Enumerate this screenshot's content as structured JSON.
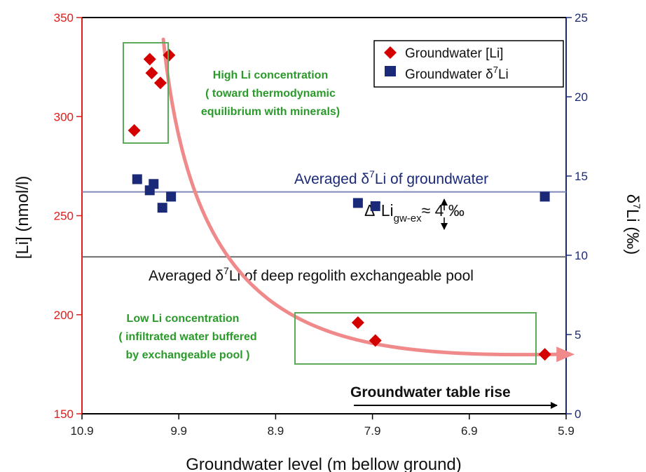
{
  "chart_data": {
    "type": "scatter",
    "xlabel": "Groundwater level (m bellow ground)",
    "ylabel_left": "[Li] (nmol/l)",
    "ylabel_right": "δ7Li (‰)",
    "x_reversed": true,
    "xlim": [
      10.9,
      5.9
    ],
    "ylim_left": [
      150,
      350
    ],
    "ylim_right": [
      0,
      25
    ],
    "x_ticks": [
      "10.9",
      "9.9",
      "8.9",
      "7.9",
      "6.9",
      "5.9"
    ],
    "y_left_ticks": [
      "150",
      "200",
      "250",
      "300",
      "350"
    ],
    "y_right_ticks": [
      "0",
      "5",
      "10",
      "15",
      "20",
      "25"
    ],
    "series": [
      {
        "name": "Groundwater [Li]",
        "axis": "left",
        "marker": "diamond",
        "color": "#d40000",
        "points": [
          {
            "x": 10.36,
            "y": 293
          },
          {
            "x": 10.2,
            "y": 329
          },
          {
            "x": 10.18,
            "y": 322
          },
          {
            "x": 10.09,
            "y": 317
          },
          {
            "x": 10.0,
            "y": 331
          },
          {
            "x": 8.05,
            "y": 196
          },
          {
            "x": 7.87,
            "y": 187
          },
          {
            "x": 6.12,
            "y": 180
          }
        ]
      },
      {
        "name": "Groundwater δ7Li",
        "axis": "right",
        "marker": "square",
        "color": "#1b2a78",
        "points": [
          {
            "x": 10.33,
            "y": 14.8
          },
          {
            "x": 10.2,
            "y": 14.1
          },
          {
            "x": 10.16,
            "y": 14.5
          },
          {
            "x": 10.07,
            "y": 13.0
          },
          {
            "x": 9.98,
            "y": 13.7
          },
          {
            "x": 8.05,
            "y": 13.3
          },
          {
            "x": 7.87,
            "y": 13.1
          },
          {
            "x": 6.12,
            "y": 13.7
          }
        ]
      }
    ],
    "reference_lines": [
      {
        "axis": "right",
        "y": 14.0,
        "color": "#7f88b8",
        "label": "Averaged δ7Li of groundwater"
      },
      {
        "axis": "right",
        "y": 9.9,
        "color": "#6b6b6b",
        "label": "Averaged δ7Li of deep regolith exchangeable pool"
      }
    ],
    "trend_curve": {
      "color": "#f08a8a"
    },
    "delta_annotation": {
      "main": "Δ7Li",
      "sub": "gw-ex",
      "value": "≈ 4 ‰"
    },
    "annotations": {
      "high": [
        "High Li concentration",
        "( toward  thermodynamic",
        "equilibrium with minerals)"
      ],
      "low": [
        "Low Li concentration",
        "( infiltrated water buffered",
        "by exchangeable pool )"
      ],
      "table_rise": "Groundwater table rise"
    },
    "legend_position": "top-right",
    "grid": false
  }
}
